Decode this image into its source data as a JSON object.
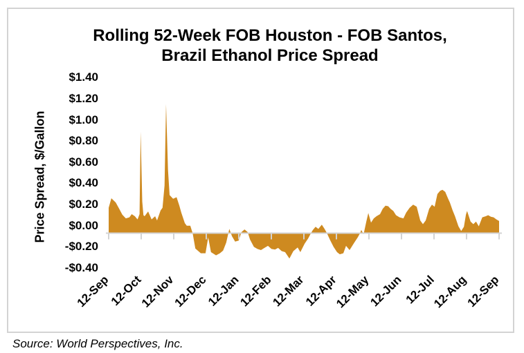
{
  "footer": {
    "source": "Source: World Perspectives, Inc."
  },
  "chart_data": {
    "type": "area",
    "title": "Rolling 52-Week FOB Houston - FOB Santos, Brazil Ethanol Price Spread",
    "xlabel": "",
    "ylabel": "Price Spread, $/Gallon",
    "unit": "$/Gallon",
    "ylim": [
      -0.4,
      1.4
    ],
    "ytick_step": 0.2,
    "grid": false,
    "legend_position": "none",
    "colors": {
      "fill": "#ce8a20",
      "axis": "#d3d3d3",
      "border": "#d3d3d3",
      "text": "#000000"
    },
    "yticks": [
      {
        "label": "$1.40",
        "value": 1.4
      },
      {
        "label": "$1.20",
        "value": 1.2
      },
      {
        "label": "$1.00",
        "value": 1.0
      },
      {
        "label": "$0.80",
        "value": 0.8
      },
      {
        "label": "$0.60",
        "value": 0.6
      },
      {
        "label": "$0.40",
        "value": 0.4
      },
      {
        "label": "$0.20",
        "value": 0.2
      },
      {
        "label": "$0.00",
        "value": 0.0
      },
      {
        "label": "-$0.20",
        "value": -0.2
      },
      {
        "label": "-$0.40",
        "value": -0.4
      }
    ],
    "xticks": [
      "12-Sep",
      "12-Oct",
      "12-Nov",
      "12-Dec",
      "12-Jan",
      "12-Feb",
      "12-Mar",
      "12-Apr",
      "12-May",
      "12-Jun",
      "12-Jul",
      "12-Aug",
      "12-Sep"
    ],
    "points": [
      [
        0.0,
        0.24
      ],
      [
        0.007,
        0.33
      ],
      [
        0.018,
        0.29
      ],
      [
        0.027,
        0.23
      ],
      [
        0.035,
        0.175
      ],
      [
        0.044,
        0.14
      ],
      [
        0.053,
        0.15
      ],
      [
        0.059,
        0.18
      ],
      [
        0.067,
        0.16
      ],
      [
        0.074,
        0.13
      ],
      [
        0.079,
        0.18
      ],
      [
        0.082,
        0.96
      ],
      [
        0.086,
        0.3
      ],
      [
        0.089,
        0.17
      ],
      [
        0.092,
        0.16
      ],
      [
        0.101,
        0.205
      ],
      [
        0.11,
        0.13
      ],
      [
        0.119,
        0.16
      ],
      [
        0.124,
        0.12
      ],
      [
        0.133,
        0.215
      ],
      [
        0.138,
        0.24
      ],
      [
        0.143,
        0.45
      ],
      [
        0.147,
        1.22
      ],
      [
        0.152,
        0.6
      ],
      [
        0.156,
        0.36
      ],
      [
        0.165,
        0.325
      ],
      [
        0.174,
        0.34
      ],
      [
        0.181,
        0.26
      ],
      [
        0.186,
        0.195
      ],
      [
        0.195,
        0.095
      ],
      [
        0.2,
        0.07
      ],
      [
        0.209,
        0.07
      ],
      [
        0.215,
        0.0
      ],
      [
        0.222,
        -0.145
      ],
      [
        0.236,
        -0.19
      ],
      [
        0.248,
        -0.19
      ],
      [
        0.255,
        -0.04
      ],
      [
        0.262,
        -0.18
      ],
      [
        0.275,
        -0.21
      ],
      [
        0.285,
        -0.19
      ],
      [
        0.293,
        -0.165
      ],
      [
        0.301,
        -0.09
      ],
      [
        0.309,
        0.04
      ],
      [
        0.316,
        -0.03
      ],
      [
        0.324,
        -0.08
      ],
      [
        0.333,
        -0.07
      ],
      [
        0.34,
        0.01
      ],
      [
        0.348,
        0.035
      ],
      [
        0.356,
        0.01
      ],
      [
        0.362,
        -0.06
      ],
      [
        0.372,
        -0.13
      ],
      [
        0.381,
        -0.15
      ],
      [
        0.39,
        -0.16
      ],
      [
        0.399,
        -0.14
      ],
      [
        0.408,
        -0.12
      ],
      [
        0.417,
        -0.15
      ],
      [
        0.426,
        -0.155
      ],
      [
        0.434,
        -0.14
      ],
      [
        0.443,
        -0.17
      ],
      [
        0.452,
        -0.18
      ],
      [
        0.463,
        -0.24
      ],
      [
        0.473,
        -0.17
      ],
      [
        0.484,
        -0.135
      ],
      [
        0.491,
        -0.18
      ],
      [
        0.502,
        -0.1
      ],
      [
        0.511,
        -0.05
      ],
      [
        0.518,
        0.0
      ],
      [
        0.523,
        0.03
      ],
      [
        0.53,
        0.06
      ],
      [
        0.537,
        0.04
      ],
      [
        0.546,
        0.08
      ],
      [
        0.553,
        0.04
      ],
      [
        0.559,
        0.0
      ],
      [
        0.567,
        -0.065
      ],
      [
        0.576,
        -0.13
      ],
      [
        0.585,
        -0.18
      ],
      [
        0.592,
        -0.2
      ],
      [
        0.601,
        -0.19
      ],
      [
        0.608,
        -0.12
      ],
      [
        0.617,
        -0.16
      ],
      [
        0.629,
        -0.09
      ],
      [
        0.638,
        -0.04
      ],
      [
        0.644,
        0.0
      ],
      [
        0.647,
        0.03
      ],
      [
        0.653,
        -0.01
      ],
      [
        0.66,
        0.11
      ],
      [
        0.665,
        0.19
      ],
      [
        0.672,
        0.1
      ],
      [
        0.679,
        0.14
      ],
      [
        0.686,
        0.16
      ],
      [
        0.695,
        0.18
      ],
      [
        0.702,
        0.23
      ],
      [
        0.709,
        0.26
      ],
      [
        0.716,
        0.255
      ],
      [
        0.722,
        0.23
      ],
      [
        0.729,
        0.21
      ],
      [
        0.736,
        0.17
      ],
      [
        0.745,
        0.15
      ],
      [
        0.755,
        0.14
      ],
      [
        0.762,
        0.195
      ],
      [
        0.771,
        0.24
      ],
      [
        0.78,
        0.27
      ],
      [
        0.789,
        0.25
      ],
      [
        0.798,
        0.12
      ],
      [
        0.805,
        0.085
      ],
      [
        0.812,
        0.12
      ],
      [
        0.821,
        0.23
      ],
      [
        0.828,
        0.27
      ],
      [
        0.835,
        0.25
      ],
      [
        0.842,
        0.37
      ],
      [
        0.849,
        0.4
      ],
      [
        0.855,
        0.41
      ],
      [
        0.862,
        0.39
      ],
      [
        0.869,
        0.33
      ],
      [
        0.874,
        0.29
      ],
      [
        0.881,
        0.215
      ],
      [
        0.887,
        0.16
      ],
      [
        0.896,
        0.065
      ],
      [
        0.903,
        0.02
      ],
      [
        0.91,
        0.06
      ],
      [
        0.915,
        0.175
      ],
      [
        0.918,
        0.21
      ],
      [
        0.927,
        0.11
      ],
      [
        0.934,
        0.085
      ],
      [
        0.941,
        0.11
      ],
      [
        0.948,
        0.065
      ],
      [
        0.957,
        0.15
      ],
      [
        0.966,
        0.16
      ],
      [
        0.972,
        0.17
      ],
      [
        0.979,
        0.155
      ],
      [
        0.986,
        0.15
      ],
      [
        0.993,
        0.13
      ],
      [
        1.0,
        0.115
      ]
    ]
  }
}
